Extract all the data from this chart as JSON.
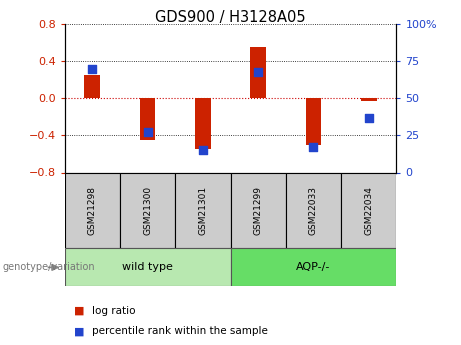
{
  "title": "GDS900 / H3128A05",
  "samples": [
    "GSM21298",
    "GSM21300",
    "GSM21301",
    "GSM21299",
    "GSM22033",
    "GSM22034"
  ],
  "log_ratios": [
    0.25,
    -0.45,
    -0.55,
    0.55,
    -0.5,
    -0.03
  ],
  "percentile_ranks": [
    70,
    27,
    15,
    68,
    17,
    37
  ],
  "groups": [
    {
      "label": "wild type",
      "start": 0,
      "end": 3,
      "color": "#b8e8b0"
    },
    {
      "label": "AQP-/-",
      "start": 3,
      "end": 6,
      "color": "#66dd66"
    }
  ],
  "group_label_prefix": "genotype/variation",
  "ylim_left": [
    -0.8,
    0.8
  ],
  "ylim_right": [
    0,
    100
  ],
  "yticks_left": [
    -0.8,
    -0.4,
    0.0,
    0.4,
    0.8
  ],
  "yticks_right": [
    0,
    25,
    50,
    75,
    100
  ],
  "bar_color": "#cc2200",
  "dot_color": "#2244cc",
  "bar_width": 0.28,
  "dot_size": 35,
  "grid_color": "#000000",
  "zero_line_color": "#cc0000",
  "left_tick_color": "#cc2200",
  "right_tick_color": "#2244cc",
  "sample_box_color": "#cccccc",
  "legend_log_ratio_label": "log ratio",
  "legend_percentile_label": "percentile rank within the sample"
}
